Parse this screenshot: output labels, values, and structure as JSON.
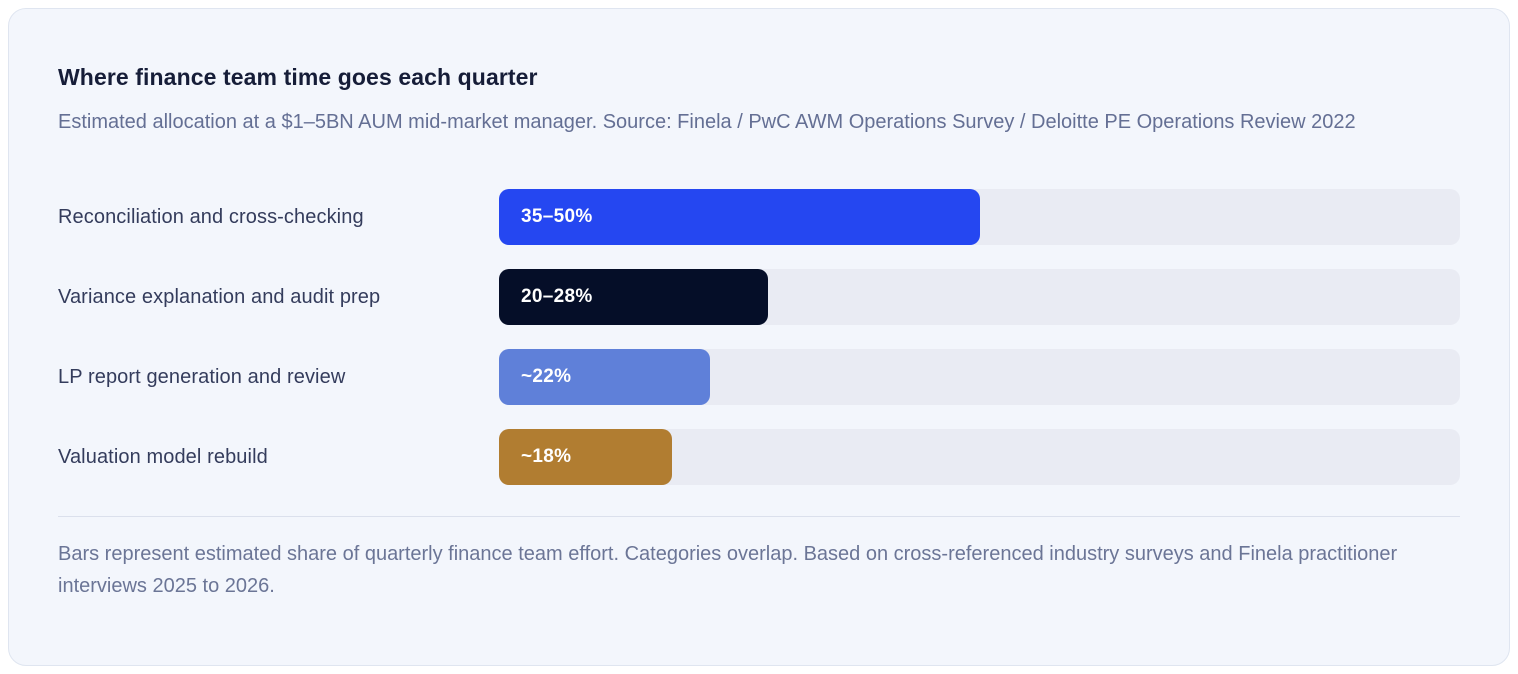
{
  "chart_data": {
    "type": "bar",
    "orientation": "horizontal",
    "title": "Where finance team time goes each quarter",
    "subtitle": "Estimated allocation at a $1–5BN AUM mid-market manager. Source: Finela / PwC AWM Operations Survey / Deloitte PE Operations Review 2022",
    "footnote": "Bars represent estimated share of quarterly finance team effort. Categories overlap. Based on cross-referenced industry surveys and Finela practitioner interviews 2025 to 2026.",
    "axis_range_percent": [
      0,
      100
    ],
    "grid": false,
    "legend": false,
    "track_color": "#e9ebf3",
    "rows": [
      {
        "label": "Reconciliation and cross-checking",
        "value_label": "35–50%",
        "value_min": 35,
        "value_max": 50,
        "bar_percent": 50,
        "color": "#2547f1"
      },
      {
        "label": "Variance explanation and audit prep",
        "value_label": "20–28%",
        "value_min": 20,
        "value_max": 28,
        "bar_percent": 28,
        "color": "#050e28"
      },
      {
        "label": "LP report generation and review",
        "value_label": "~22%",
        "value_min": 22,
        "value_max": 22,
        "bar_percent": 22,
        "color": "#5f80d9"
      },
      {
        "label": "Valuation model rebuild",
        "value_label": "~18%",
        "value_min": 18,
        "value_max": 18,
        "bar_percent": 18,
        "color": "#b17d31"
      }
    ]
  }
}
